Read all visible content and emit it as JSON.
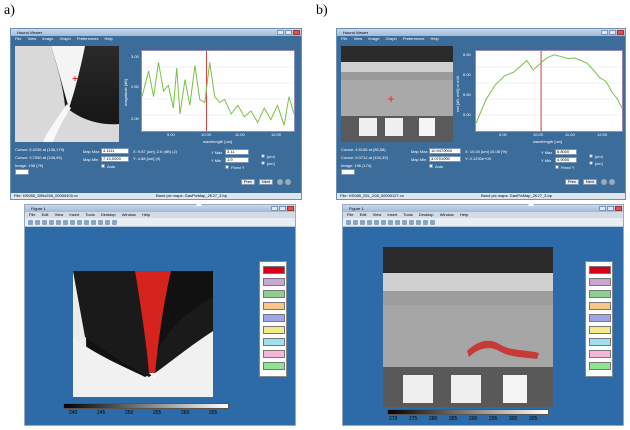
{
  "panels": [
    {
      "label": "a)",
      "viewer": {
        "title": "Hound Viewer",
        "menu": [
          "File",
          "View",
          "Image",
          "Graph",
          "Preferences",
          "Help"
        ],
        "xticks": [
          "9.00",
          "10.00",
          "11.00",
          "12.00"
        ],
        "yticks": [
          "3.00",
          "2.50",
          "2.00"
        ],
        "xlabel": "wavelength [um]",
        "ylabel": "magnitude [dB]",
        "ylim": [
          1.9,
          3.3
        ],
        "xlim": [
          8.0,
          12.6
        ],
        "series_color": "#7ac143",
        "marker_color": "#d23c3c",
        "spectrum": [
          [
            8.0,
            2.5
          ],
          [
            8.2,
            2.95
          ],
          [
            8.35,
            2.5
          ],
          [
            8.5,
            3.1
          ],
          [
            8.65,
            2.6
          ],
          [
            8.8,
            2.7
          ],
          [
            8.95,
            2.3
          ],
          [
            9.05,
            3.0
          ],
          [
            9.15,
            2.2
          ],
          [
            9.3,
            2.8
          ],
          [
            9.45,
            2.35
          ],
          [
            9.6,
            3.05
          ],
          [
            9.75,
            2.45
          ],
          [
            9.9,
            2.4
          ],
          [
            10.05,
            3.1
          ],
          [
            10.2,
            2.5
          ],
          [
            10.35,
            2.4
          ],
          [
            10.5,
            2.45
          ],
          [
            10.7,
            2.2
          ],
          [
            10.9,
            2.35
          ],
          [
            11.1,
            2.15
          ],
          [
            11.3,
            2.25
          ],
          [
            11.5,
            2.05
          ],
          [
            11.7,
            2.3
          ],
          [
            11.9,
            2.1
          ],
          [
            12.1,
            2.35
          ],
          [
            12.3,
            2.0
          ],
          [
            12.45,
            2.5
          ],
          [
            12.6,
            2.2
          ]
        ],
        "marker_x": 9.95,
        "info": [
          "Cursor: 5.4236 at (136,179)",
          "Cursor: 3.7000 at (108,93)",
          "Image: 198 (79)"
        ],
        "mid_info": [
          "X: 9.87 [um], 2.6 (dB) (2)",
          "Y: 4.88 [um] (4)"
        ],
        "map_min_label": "Map Max",
        "map_max_label": "Map Min",
        "map_min_value": "4.1111",
        "map_max_value": "7.13.0000",
        "auto_label": "Auto",
        "y_max_label": "Y Max",
        "y_min_label": "Y Min",
        "y_max_value": "3.11",
        "y_min_value": "1.9",
        "fixed_label": "Fixed Y",
        "radio_labels": [
          "[um]",
          "[cm]"
        ],
        "buttons": [
          "Prev",
          "Next"
        ],
        "status_left": "File: HS065_2B0x256_00000400.xx",
        "status_right": "Band pix maps: GasPixMap_2K27_3.bp"
      },
      "figure": {
        "title": "Figure 1",
        "menu": [
          "File",
          "Edit",
          "View",
          "Insert",
          "Tools",
          "Desktop",
          "Window",
          "Help"
        ],
        "colorbar_ticks": [
          "240",
          "245",
          "250",
          "255",
          "260",
          "265"
        ],
        "swatch_colors": [
          "#d9001b",
          "#c9a6d4",
          "#8fcf8f",
          "#f6c789",
          "#9ea6e8",
          "#f3ea8a",
          "#9fe0ef",
          "#f2b7d9",
          "#8fe58f"
        ]
      }
    },
    {
      "label": "b)",
      "viewer": {
        "title": "Hound Viewer",
        "menu": [
          "File",
          "View",
          "Image",
          "Graph",
          "Preferences",
          "Help"
        ],
        "xticks": [
          "9.00",
          "10.00",
          "11.00",
          "12.00"
        ],
        "yticks": [
          "6.50",
          "6.00",
          "5.50",
          "5.00"
        ],
        "xlabel": "wavelength [um]",
        "ylabel": "rad [dB, mW] or mW",
        "ylim": [
          4.6,
          6.7
        ],
        "xlim": [
          8.0,
          12.6
        ],
        "series_color": "#7ac143",
        "marker_color": "#d23c3c",
        "spectrum": [
          [
            8.0,
            4.8
          ],
          [
            8.3,
            5.4
          ],
          [
            8.6,
            5.8
          ],
          [
            8.9,
            6.05
          ],
          [
            9.2,
            6.15
          ],
          [
            9.4,
            6.3
          ],
          [
            9.6,
            6.45
          ],
          [
            9.8,
            6.2
          ],
          [
            10.0,
            6.35
          ],
          [
            10.2,
            6.5
          ],
          [
            10.45,
            6.6
          ],
          [
            10.7,
            6.55
          ],
          [
            10.9,
            6.5
          ],
          [
            11.1,
            6.52
          ],
          [
            11.3,
            6.45
          ],
          [
            11.5,
            6.38
          ],
          [
            11.7,
            6.2
          ],
          [
            11.9,
            6.0
          ],
          [
            12.1,
            5.9
          ],
          [
            12.3,
            5.6
          ],
          [
            12.45,
            5.45
          ],
          [
            12.6,
            5.2
          ]
        ],
        "marker_x": 10.05,
        "info": [
          "Cursor: 4.5136 at (80,58)",
          "Cursor: 0.0712 at (104,33)",
          "Image: 196 (174)"
        ],
        "mid_info": [
          "X: 10.04 [um] 10.08 (%)",
          "Y: 0.1230e+00"
        ],
        "map_min_label": "Map Max",
        "map_max_label": "Map Min",
        "map_min_value": "10.9470000",
        "map_max_value": "3.0791000",
        "auto_label": "Auto",
        "y_max_label": "Y Max",
        "y_min_label": "Y Min",
        "y_max_value": "6.8000",
        "y_min_value": "4.9000",
        "fixed_label": "Fixed Y",
        "radio_labels": [
          "[um]",
          "[cm]"
        ],
        "buttons": [
          "Prev",
          "Next"
        ],
        "status_left": "File: HS065_25L_208_00000127.xx",
        "status_right": "Band pix maps: GasPixMap_2K27_3.bp"
      },
      "figure": {
        "title": "Figure 1",
        "menu": [
          "File",
          "Edit",
          "View",
          "Insert",
          "Tools",
          "Desktop",
          "Window",
          "Help"
        ],
        "colorbar_ticks": [
          "270",
          "275",
          "280",
          "285",
          "290",
          "295",
          "300",
          "305"
        ],
        "swatch_colors": [
          "#d9001b",
          "#c9a6d4",
          "#8fcf8f",
          "#f6c789",
          "#9ea6e8",
          "#f3ea8a",
          "#9fe0ef",
          "#f2b7d9",
          "#8fe58f"
        ]
      }
    }
  ]
}
